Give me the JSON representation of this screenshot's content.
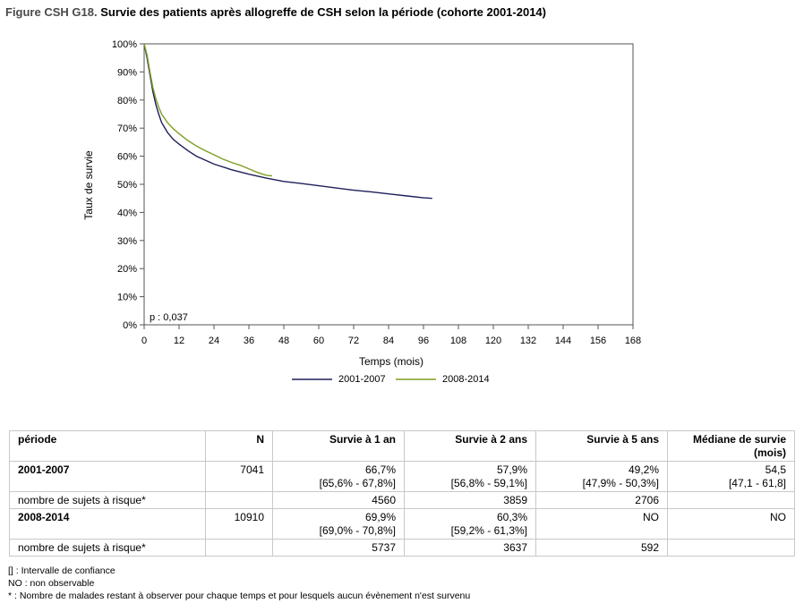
{
  "figure": {
    "prefix": "Figure CSH G18.",
    "title": "Survie des patients après allogreffe de CSH selon la période (cohorte 2001-2014)"
  },
  "chart_data": {
    "type": "line",
    "title": "",
    "xlabel": "Temps (mois)",
    "ylabel": "Taux de survie",
    "xlim": [
      0,
      168
    ],
    "ylim": [
      0,
      100
    ],
    "xticks": [
      "0",
      "12",
      "24",
      "36",
      "48",
      "60",
      "72",
      "84",
      "96",
      "108",
      "120",
      "132",
      "144",
      "156",
      "168"
    ],
    "yticks": [
      "0%",
      "10%",
      "20%",
      "30%",
      "40%",
      "50%",
      "60%",
      "70%",
      "80%",
      "90%",
      "100%"
    ],
    "annotation": "p : 0,037",
    "legend_position": "bottom",
    "grid": false,
    "series": [
      {
        "name": "2001-2007",
        "color": "#1f1f5c",
        "points": [
          [
            0,
            100
          ],
          [
            1,
            95
          ],
          [
            2,
            89
          ],
          [
            3,
            83
          ],
          [
            4,
            78.5
          ],
          [
            5,
            75
          ],
          [
            6,
            72
          ],
          [
            8,
            68.5
          ],
          [
            10,
            66
          ],
          [
            12,
            64.3
          ],
          [
            15,
            62
          ],
          [
            18,
            60
          ],
          [
            21,
            58.6
          ],
          [
            24,
            57.2
          ],
          [
            30,
            55.2
          ],
          [
            36,
            53.6
          ],
          [
            42,
            52.2
          ],
          [
            48,
            51
          ],
          [
            54,
            50.3
          ],
          [
            60,
            49.5
          ],
          [
            66,
            48.7
          ],
          [
            72,
            47.9
          ],
          [
            78,
            47.3
          ],
          [
            84,
            46.6
          ],
          [
            90,
            45.9
          ],
          [
            96,
            45.2
          ],
          [
            99,
            45
          ]
        ]
      },
      {
        "name": "2008-2014",
        "color": "#7f9e1e",
        "points": [
          [
            0,
            100
          ],
          [
            1,
            96
          ],
          [
            2,
            90
          ],
          [
            3,
            84.5
          ],
          [
            4,
            80.5
          ],
          [
            5,
            77.5
          ],
          [
            6,
            75
          ],
          [
            8,
            72
          ],
          [
            10,
            69.8
          ],
          [
            12,
            68
          ],
          [
            15,
            65.6
          ],
          [
            18,
            63.6
          ],
          [
            21,
            62
          ],
          [
            24,
            60.5
          ],
          [
            27,
            59
          ],
          [
            30,
            57.8
          ],
          [
            33,
            56.8
          ],
          [
            36,
            55.5
          ],
          [
            39,
            54.2
          ],
          [
            42,
            53.2
          ],
          [
            44,
            53
          ]
        ]
      }
    ]
  },
  "table": {
    "header": {
      "periode": "période",
      "n": "N",
      "s1": "Survie à 1 an",
      "s2": "Survie à 2 ans",
      "s5": "Survie à 5 ans",
      "median": "Médiane de survie (mois)"
    },
    "rows": [
      {
        "periode": "2001-2007",
        "n": "7041",
        "s1": "66,7%",
        "s1_ci": "[65,6% - 67,8%]",
        "s2": "57,9%",
        "s2_ci": "[56,8% - 59,1%]",
        "s5": "49,2%",
        "s5_ci": "[47,9% - 50,3%]",
        "median": "54,5",
        "median_ci": "[47,1 - 61,8]",
        "risk_label": "nombre de sujets à risque*",
        "risk1": "4560",
        "risk2": "3859",
        "risk5": "2706"
      },
      {
        "periode": "2008-2014",
        "n": "10910",
        "s1": "69,9%",
        "s1_ci": "[69,0% - 70,8%]",
        "s2": "60,3%",
        "s2_ci": "[59,2% - 61,3%]",
        "s5": "NO",
        "s5_ci": "",
        "median": "NO",
        "median_ci": "",
        "risk_label": "nombre de sujets à risque*",
        "risk1": "5737",
        "risk2": "3637",
        "risk5": "592"
      }
    ]
  },
  "footnotes": [
    "[] : Intervalle de confiance",
    "NO : non observable",
    "* : Nombre de malades restant à observer pour chaque temps et pour lesquels aucun évènement n'est survenu"
  ]
}
